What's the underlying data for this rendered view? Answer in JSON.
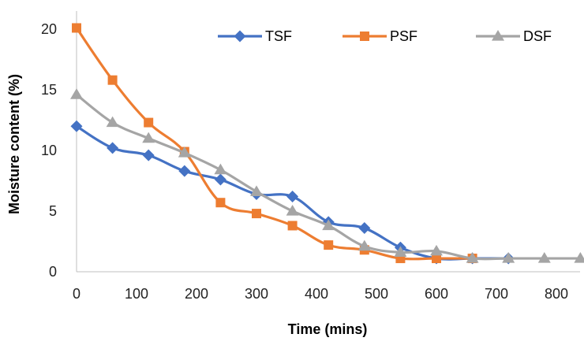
{
  "chart_data": {
    "type": "line",
    "xlabel": "Time (mins)",
    "ylabel": "Moisture content (%)",
    "xlim": [
      0,
      840
    ],
    "ylim": [
      0,
      22
    ],
    "xticks": [
      0,
      100,
      200,
      300,
      400,
      500,
      600,
      700,
      800
    ],
    "yticks": [
      0,
      5,
      10,
      15,
      20
    ],
    "grid": false,
    "legend_position": "top",
    "series": [
      {
        "name": "TSF",
        "color": "#4472C4",
        "marker": "diamond",
        "x": [
          0,
          60,
          120,
          180,
          240,
          300,
          360,
          420,
          480,
          540,
          600,
          660,
          720
        ],
        "y": [
          12.0,
          10.2,
          9.6,
          8.3,
          7.6,
          6.4,
          6.2,
          4.1,
          3.6,
          2.0,
          1.1,
          1.1,
          1.1
        ]
      },
      {
        "name": "PSF",
        "color": "#ED7D31",
        "marker": "square",
        "x": [
          0,
          60,
          120,
          180,
          240,
          300,
          360,
          420,
          480,
          540,
          600,
          660
        ],
        "y": [
          20.1,
          15.8,
          12.3,
          9.9,
          5.7,
          4.8,
          3.8,
          2.2,
          1.8,
          1.1,
          1.1,
          1.1
        ]
      },
      {
        "name": "DSF",
        "color": "#A5A5A5",
        "marker": "triangle",
        "x": [
          0,
          60,
          120,
          180,
          240,
          300,
          360,
          420,
          480,
          540,
          600,
          660,
          720,
          780,
          840
        ],
        "y": [
          14.6,
          12.3,
          11.0,
          9.8,
          8.4,
          6.6,
          5.0,
          3.8,
          2.1,
          1.6,
          1.7,
          1.1,
          1.1,
          1.1,
          1.1
        ]
      }
    ]
  }
}
